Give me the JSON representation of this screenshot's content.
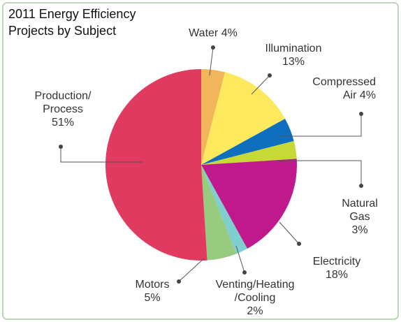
{
  "chart_data": {
    "type": "pie",
    "title": "2011 Energy Efficiency Projects by Subject",
    "categories": [
      "Water",
      "Illumination",
      "Compressed\nAir",
      "Natural Gas",
      "Electricity",
      "Venting/Heating\n/Cooling",
      "Motors",
      "Production/\nProcess"
    ],
    "values": [
      4,
      13,
      4,
      3,
      18,
      2,
      5,
      51
    ],
    "value_labels": [
      "4%",
      "13%",
      "4%",
      "3%",
      "18%",
      "2%",
      "5%",
      "51%"
    ],
    "colors": [
      "#f2b55c",
      "#fde95e",
      "#0e6fbf",
      "#c6d936",
      "#c0198c",
      "#80cfd0",
      "#97cc80",
      "#e03a60"
    ]
  }
}
